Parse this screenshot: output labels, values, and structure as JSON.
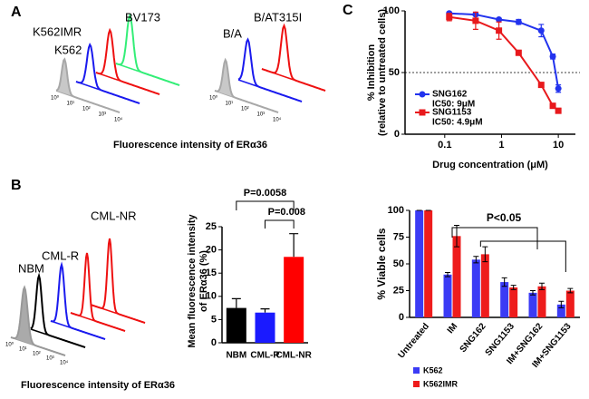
{
  "panels": {
    "a": "A",
    "b": "B",
    "c": "C"
  },
  "flow_a": {
    "left_labels": [
      "K562IMR",
      "BV173",
      "K562"
    ],
    "right_labels": [
      "B/A",
      "B/AT315I"
    ],
    "axis_ticks": [
      "10⁰",
      "10¹",
      "10²",
      "10³",
      "10⁴"
    ],
    "xlabel": "Fluorescence intensity of ERα36"
  },
  "flow_b": {
    "labels": [
      "NBM",
      "CML-R",
      "CML-NR"
    ],
    "axis_ticks": [
      "10⁰",
      "10¹",
      "10²",
      "10³",
      "10⁴"
    ],
    "xlabel": "Fluorescence intensity of ERα36"
  },
  "chart_data": [
    {
      "type": "line",
      "x_scale": "log",
      "x": [
        0.12,
        0.35,
        0.9,
        2,
        5,
        8,
        10
      ],
      "xlim": [
        0.02,
        20
      ],
      "xticks": [
        0.1,
        1,
        10
      ],
      "ylim": [
        0,
        100
      ],
      "yticks": [
        0,
        50,
        100
      ],
      "reference_line": 50,
      "xlabel": "Drug concentration (μM)",
      "ylabel": [
        "% Inhibition",
        "(relative to untreated cells)"
      ],
      "series": [
        {
          "name": "SNG162",
          "annotation": "IC50: 9μM",
          "color": "#2233ee",
          "marker": "circle",
          "values": [
            98,
            97,
            93,
            91,
            84,
            63,
            37
          ],
          "errors": [
            1,
            1,
            1,
            2,
            5,
            2,
            3
          ]
        },
        {
          "name": "SNG1153",
          "annotation": "IC50: 4.9μM",
          "color": "#e8191c",
          "marker": "square",
          "values": [
            95,
            92,
            84,
            66,
            40,
            23,
            19
          ],
          "errors": [
            3,
            7,
            7,
            2,
            1,
            2,
            2
          ]
        }
      ]
    },
    {
      "type": "bar",
      "categories": [
        "NBM",
        "CML-R",
        "CML-NR"
      ],
      "values": [
        7.5,
        6.5,
        18.5
      ],
      "errors": [
        2,
        0.8,
        5
      ],
      "colors": [
        "#000000",
        "#1a1aff",
        "#ff0000"
      ],
      "ylim": [
        0,
        25
      ],
      "yticks": [
        0,
        5,
        10,
        15,
        20,
        25
      ],
      "ylabel": [
        "Mean fluorescence intensity",
        "of ERα36 (%)"
      ],
      "annotations": [
        "P=0.0058",
        "P=0.008"
      ]
    },
    {
      "type": "grouped_bar",
      "categories": [
        "Untreated",
        "IM",
        "SNG162",
        "SNG1153",
        "IM+SNG162",
        "IM+SNG1153"
      ],
      "series": [
        {
          "name": "K562",
          "color": "#3b3bf5",
          "values": [
            100,
            40,
            54,
            33,
            23,
            12
          ],
          "errors": [
            0,
            2,
            3,
            4,
            2,
            3
          ]
        },
        {
          "name": "K562IMR",
          "color": "#ee1c1c",
          "values": [
            100,
            76,
            59,
            28,
            29,
            25
          ],
          "errors": [
            0,
            10,
            7,
            2,
            3,
            2
          ]
        }
      ],
      "ylim": [
        0,
        100
      ],
      "yticks": [
        0,
        25,
        50,
        75,
        100
      ],
      "ylabel": "% Viable cells",
      "annotation": "P<0.05"
    }
  ]
}
